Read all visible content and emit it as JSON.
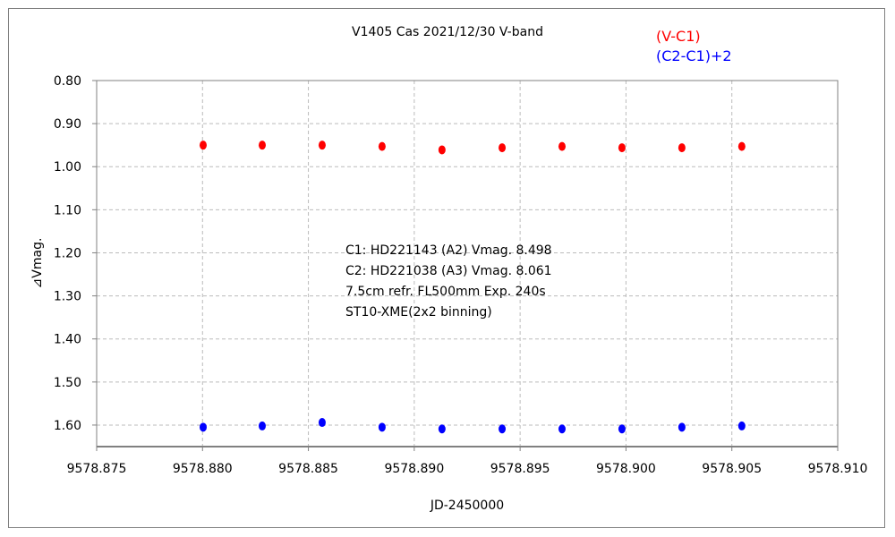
{
  "chart_data": {
    "type": "scatter",
    "title": "V1405 Cas   2021/12/30   V-band",
    "xlabel": "JD-2450000",
    "ylabel": "⊿Vmag.",
    "xlim": [
      9578.875,
      9578.91
    ],
    "ylim": [
      0.8,
      1.65
    ],
    "y_inverted": true,
    "grid": true,
    "legend_position": "top-right",
    "x_ticks": [
      "9578.875",
      "9578.880",
      "9578.885",
      "9578.890",
      "9578.895",
      "9578.900",
      "9578.905",
      "9578.910"
    ],
    "y_ticks": [
      "0.80",
      "0.90",
      "1.00",
      "1.10",
      "1.20",
      "1.30",
      "1.40",
      "1.50",
      "1.60"
    ],
    "x": [
      9578.88003,
      9578.88282,
      9578.88565,
      9578.88848,
      9578.89131,
      9578.89415,
      9578.89698,
      9578.89981,
      9578.90264,
      9578.90547
    ],
    "series": [
      {
        "name": "(V-C1)",
        "color": "#ff0000",
        "values": [
          0.95,
          0.95,
          0.95,
          0.953,
          0.961,
          0.956,
          0.953,
          0.956,
          0.956,
          0.953
        ]
      },
      {
        "name": "(C2-C1)+2",
        "color": "#0000ff",
        "values": [
          1.605,
          1.602,
          1.594,
          1.605,
          1.609,
          1.609,
          1.609,
          1.609,
          1.605,
          1.602
        ]
      }
    ],
    "annotations": [
      "C1: HD221143 (A2) Vmag. 8.498",
      "C2: HD221038 (A3) Vmag. 8.061",
      "7.5cm refr. FL500mm Exp. 240s",
      "ST10-XME(2x2 binning)"
    ]
  }
}
